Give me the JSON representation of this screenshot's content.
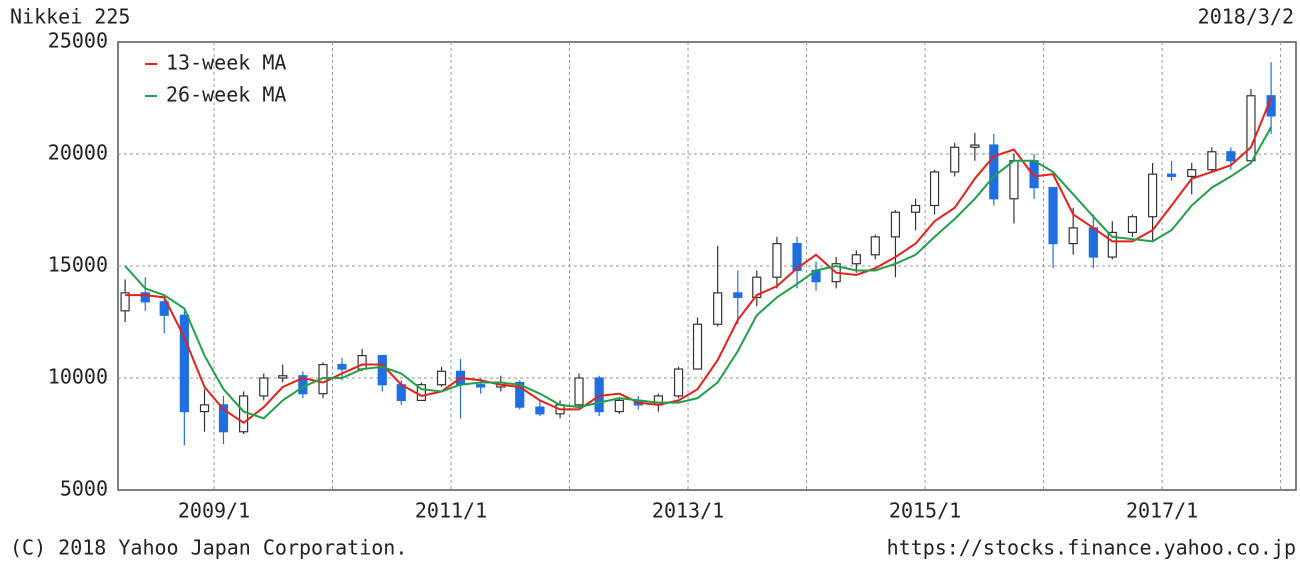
{
  "chart_data": {
    "type": "candlestick",
    "title": "Nikkei 225",
    "date": "2018/3/2",
    "copyright": "(C) 2018 Yahoo Japan Corporation.",
    "source": "https://stocks.finance.yahoo.co.jp",
    "xlim": [
      2008.19,
      2018.13
    ],
    "ylim": [
      5000,
      25000
    ],
    "yticks": [
      5000,
      10000,
      15000,
      20000,
      25000
    ],
    "xticks": [
      {
        "value": 2009,
        "label": "2009/1"
      },
      {
        "value": 2010,
        "label": null
      },
      {
        "value": 2011,
        "label": "2011/1"
      },
      {
        "value": 2012,
        "label": null
      },
      {
        "value": 2013,
        "label": "2013/1"
      },
      {
        "value": 2014,
        "label": null
      },
      {
        "value": 2015,
        "label": "2015/1"
      },
      {
        "value": 2016,
        "label": null
      },
      {
        "value": 2017,
        "label": "2017/1"
      },
      {
        "value": 2018,
        "label": null
      }
    ],
    "grid": true,
    "legend": "upper left",
    "up_color": "#ffffff",
    "down_color": "#1f6fe0",
    "x": [
      2008.25,
      2008.42,
      2008.58,
      2008.75,
      2008.92,
      2009.08,
      2009.25,
      2009.42,
      2009.58,
      2009.75,
      2009.92,
      2010.08,
      2010.25,
      2010.42,
      2010.58,
      2010.75,
      2010.92,
      2011.08,
      2011.25,
      2011.42,
      2011.58,
      2011.75,
      2011.92,
      2012.08,
      2012.25,
      2012.42,
      2012.58,
      2012.75,
      2012.92,
      2013.08,
      2013.25,
      2013.42,
      2013.58,
      2013.75,
      2013.92,
      2014.08,
      2014.25,
      2014.42,
      2014.58,
      2014.75,
      2014.92,
      2015.08,
      2015.25,
      2015.42,
      2015.58,
      2015.75,
      2015.92,
      2016.08,
      2016.25,
      2016.42,
      2016.58,
      2016.75,
      2016.92,
      2017.08,
      2017.25,
      2017.42,
      2017.58,
      2017.75,
      2017.92
    ],
    "open": [
      13000,
      13800,
      13400,
      12800,
      8500,
      8800,
      7600,
      9200,
      10000,
      10100,
      9300,
      10600,
      10400,
      11000,
      9700,
      9000,
      9700,
      10300,
      9700,
      9600,
      9800,
      8700,
      8400,
      8800,
      10000,
      8500,
      9000,
      8800,
      9200,
      10400,
      12400,
      13800,
      13600,
      14500,
      16000,
      14800,
      14300,
      15100,
      15500,
      16300,
      17400,
      17700,
      19200,
      20300,
      20400,
      18000,
      19700,
      18500,
      16000,
      16700,
      15400,
      16500,
      17200,
      19100,
      19000,
      19300,
      20100,
      19700,
      22600
    ],
    "high": [
      14400,
      14500,
      13500,
      13000,
      9500,
      9200,
      9400,
      10200,
      10600,
      10300,
      10700,
      10900,
      11300,
      11000,
      9900,
      9800,
      10500,
      10850,
      10000,
      10100,
      9900,
      9000,
      9000,
      10200,
      10100,
      9100,
      9200,
      9300,
      10500,
      12700,
      15900,
      14800,
      14800,
      16300,
      16300,
      15200,
      15400,
      15700,
      16400,
      17500,
      18000,
      19300,
      20500,
      20950,
      20900,
      20000,
      20000,
      18500,
      17600,
      17300,
      17000,
      17300,
      19600,
      19700,
      19600,
      20300,
      20300,
      22900,
      24100
    ],
    "low": [
      12500,
      13000,
      12000,
      7000,
      7600,
      7050,
      7500,
      9000,
      9800,
      9100,
      9100,
      9900,
      10300,
      9400,
      8800,
      9000,
      9600,
      8200,
      9300,
      9400,
      8600,
      8300,
      8200,
      8700,
      8300,
      8400,
      8600,
      8500,
      9100,
      10400,
      12300,
      12400,
      13200,
      14000,
      14000,
      13900,
      14000,
      14700,
      15300,
      14500,
      16600,
      17300,
      19000,
      19700,
      17700,
      16900,
      18000,
      14900,
      15500,
      14900,
      15300,
      16300,
      16100,
      18800,
      18200,
      19200,
      19300,
      19600,
      20900
    ],
    "close": [
      13800,
      13400,
      12800,
      8500,
      8800,
      7600,
      9200,
      10000,
      10100,
      9300,
      10600,
      10400,
      11000,
      9700,
      9000,
      9700,
      10300,
      9700,
      9600,
      9800,
      8700,
      8400,
      8800,
      10000,
      8500,
      9000,
      8800,
      9200,
      10400,
      12400,
      13800,
      13600,
      14500,
      16000,
      14800,
      14300,
      15100,
      15500,
      16300,
      17400,
      17700,
      19200,
      20300,
      20400,
      18000,
      19700,
      18500,
      16000,
      16700,
      15400,
      16500,
      17200,
      19100,
      19000,
      19300,
      20100,
      19700,
      22600,
      21700
    ],
    "lines": [
      {
        "name": "13-week MA",
        "color": "#e8201a",
        "values": [
          13700,
          13700,
          13600,
          11800,
          9600,
          8600,
          8000,
          8700,
          9600,
          10000,
          9800,
          10200,
          10600,
          10600,
          9700,
          9200,
          9400,
          10000,
          9900,
          9700,
          9600,
          9000,
          8600,
          8600,
          9200,
          9300,
          8900,
          8800,
          9000,
          9500,
          10800,
          12600,
          13700,
          14100,
          14900,
          15500,
          14700,
          14600,
          14900,
          15400,
          16000,
          17000,
          17600,
          18900,
          19900,
          20200,
          19000,
          19100,
          17300,
          16700,
          16100,
          16100,
          16600,
          17700,
          18900,
          19200,
          19500,
          20300,
          22500
        ]
      },
      {
        "name": "26-week MA",
        "color": "#20a04a",
        "values": [
          15000,
          14000,
          13700,
          13100,
          11000,
          9500,
          8500,
          8200,
          9000,
          9600,
          10000,
          10000,
          10400,
          10500,
          10200,
          9500,
          9400,
          9700,
          9800,
          9800,
          9700,
          9300,
          8800,
          8700,
          8900,
          9100,
          9000,
          8900,
          8900,
          9100,
          9800,
          11200,
          12800,
          13600,
          14200,
          14800,
          15000,
          14800,
          14800,
          15100,
          15500,
          16300,
          17100,
          18000,
          19000,
          19700,
          19700,
          19200,
          18200,
          17200,
          16300,
          16200,
          16100,
          16600,
          17700,
          18500,
          19000,
          19600,
          21200
        ]
      }
    ]
  }
}
